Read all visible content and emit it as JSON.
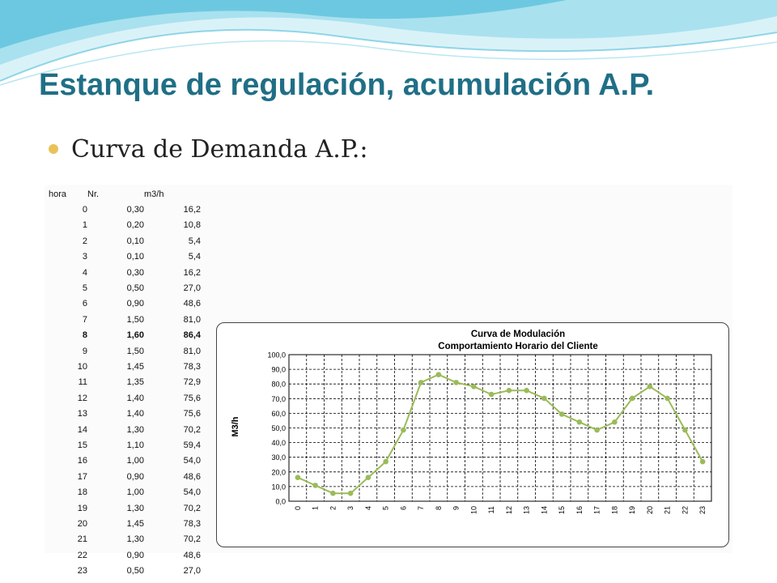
{
  "slide": {
    "title": "Estanque de regulación, acumulación A.P.",
    "bullet": "Curva de Demanda A.P.:"
  },
  "colors": {
    "title": "#1f6f86",
    "bullet": "#e8c35a",
    "series": "#9bbb59",
    "wave_light": "#bfe9f3",
    "wave_dark": "#5fc3dd"
  },
  "table": {
    "headers": [
      "hora",
      "Nr.",
      "m3/h"
    ],
    "rows": [
      [
        "0",
        "0,30",
        "16,2"
      ],
      [
        "1",
        "0,20",
        "10,8"
      ],
      [
        "2",
        "0,10",
        "5,4"
      ],
      [
        "3",
        "0,10",
        "5,4"
      ],
      [
        "4",
        "0,30",
        "16,2"
      ],
      [
        "5",
        "0,50",
        "27,0"
      ],
      [
        "6",
        "0,90",
        "48,6"
      ],
      [
        "7",
        "1,50",
        "81,0"
      ],
      [
        "8",
        "1,60",
        "86,4"
      ],
      [
        "9",
        "1,50",
        "81,0"
      ],
      [
        "10",
        "1,45",
        "78,3"
      ],
      [
        "11",
        "1,35",
        "72,9"
      ],
      [
        "12",
        "1,40",
        "75,6"
      ],
      [
        "13",
        "1,40",
        "75,6"
      ],
      [
        "14",
        "1,30",
        "70,2"
      ],
      [
        "15",
        "1,10",
        "59,4"
      ],
      [
        "16",
        "1,00",
        "54,0"
      ],
      [
        "17",
        "0,90",
        "48,6"
      ],
      [
        "18",
        "1,00",
        "54,0"
      ],
      [
        "19",
        "1,30",
        "70,2"
      ],
      [
        "20",
        "1,45",
        "78,3"
      ],
      [
        "21",
        "1,30",
        "70,2"
      ],
      [
        "22",
        "0,90",
        "48,6"
      ],
      [
        "23",
        "0,50",
        "27,0"
      ]
    ],
    "bold_row": 8
  },
  "chart_data": {
    "type": "line",
    "title": "Curva de Modulación",
    "subtitle": "Comportamiento Horario del Cliente",
    "xlabel": "",
    "ylabel": "M3/h",
    "x": [
      0,
      1,
      2,
      3,
      4,
      5,
      6,
      7,
      8,
      9,
      10,
      11,
      12,
      13,
      14,
      15,
      16,
      17,
      18,
      19,
      20,
      21,
      22,
      23
    ],
    "categories": [
      "0",
      "1",
      "2",
      "3",
      "4",
      "5",
      "6",
      "7",
      "8",
      "9",
      "10",
      "11",
      "12",
      "13",
      "14",
      "15",
      "16",
      "17",
      "18",
      "19",
      "20",
      "21",
      "22",
      "23"
    ],
    "series": [
      {
        "values": [
          16.2,
          10.8,
          5.4,
          5.4,
          16.2,
          27.0,
          48.6,
          81.0,
          86.4,
          81.0,
          78.3,
          72.9,
          75.6,
          75.6,
          70.2,
          59.4,
          54.0,
          48.6,
          54.0,
          70.2,
          78.3,
          70.2,
          48.6,
          27.0
        ]
      }
    ],
    "ylim": [
      0,
      100
    ],
    "yticks": [
      "0,0",
      "10,0",
      "20,0",
      "30,0",
      "40,0",
      "50,0",
      "60,0",
      "70,0",
      "80,0",
      "90,0",
      "100,0"
    ],
    "grid": true,
    "legend": "none"
  }
}
